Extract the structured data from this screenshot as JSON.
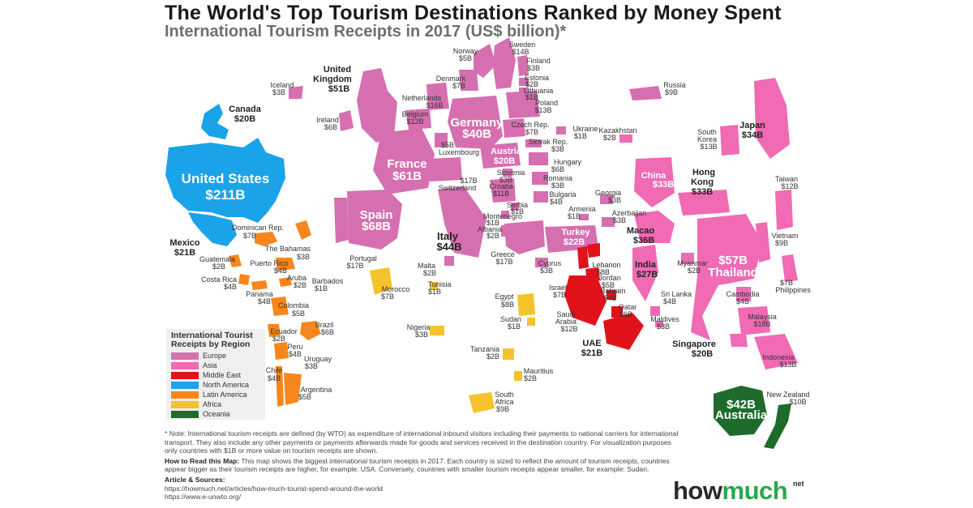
{
  "header": {
    "title": "The World's Top Tourism Destinations Ranked by Money Spent",
    "subtitle": "International Tourism Receipts in 2017 (US$ billion)*"
  },
  "colors": {
    "europe": "#d66fb0",
    "asia": "#f06ab4",
    "middle_east": "#e2121b",
    "north_america": "#1aa3e8",
    "latin_america": "#f7871c",
    "africa": "#f4c22b",
    "oceania": "#1e6b2c"
  },
  "legend": {
    "title": "International Tourist Receipts by Region",
    "items": [
      {
        "label": "Europe",
        "color": "#d66fb0"
      },
      {
        "label": "Asia",
        "color": "#f06ab4"
      },
      {
        "label": "Middle East",
        "color": "#e2121b"
      },
      {
        "label": "North America",
        "color": "#1aa3e8"
      },
      {
        "label": "Latin America",
        "color": "#f7871c"
      },
      {
        "label": "Africa",
        "color": "#f4c22b"
      },
      {
        "label": "Oceania",
        "color": "#1e6b2c"
      }
    ]
  },
  "countries": [
    {
      "name": "United States",
      "value": "$211B",
      "region": "north_america"
    },
    {
      "name": "Canada",
      "value": "$20B",
      "region": "north_america"
    },
    {
      "name": "Mexico",
      "value": "$21B",
      "region": "north_america"
    },
    {
      "name": "Spain",
      "value": "$68B",
      "region": "europe"
    },
    {
      "name": "France",
      "value": "$61B",
      "region": "europe"
    },
    {
      "name": "United Kingdom",
      "value": "$51B",
      "region": "europe"
    },
    {
      "name": "Italy",
      "value": "$44B",
      "region": "europe"
    },
    {
      "name": "Germany",
      "value": "$40B",
      "region": "europe"
    },
    {
      "name": "Turkey",
      "value": "$22B",
      "region": "europe"
    },
    {
      "name": "Austria",
      "value": "$20B",
      "region": "europe"
    },
    {
      "name": "Switzerland",
      "value": "$17B",
      "region": "europe"
    },
    {
      "name": "Portugal",
      "value": "$17B",
      "region": "europe"
    },
    {
      "name": "Greece",
      "value": "$17B",
      "region": "europe"
    },
    {
      "name": "Netherlands",
      "value": "$16B",
      "region": "europe"
    },
    {
      "name": "Sweden",
      "value": "$14B",
      "region": "europe"
    },
    {
      "name": "Poland",
      "value": "$13B",
      "region": "europe"
    },
    {
      "name": "Belgium",
      "value": "$12B",
      "region": "europe"
    },
    {
      "name": "Croatia",
      "value": "$11B",
      "region": "europe"
    },
    {
      "name": "Denmark",
      "value": "$7B",
      "region": "europe"
    },
    {
      "name": "Czech Rep.",
      "value": "$7B",
      "region": "europe"
    },
    {
      "name": "Ireland",
      "value": "$6B",
      "region": "europe"
    },
    {
      "name": "Hungary",
      "value": "$6B",
      "region": "europe"
    },
    {
      "name": "Norway",
      "value": "$5B",
      "region": "europe"
    },
    {
      "name": "Luxembourg",
      "value": "$5B",
      "region": "europe"
    },
    {
      "name": "Bulgaria",
      "value": "$4B",
      "region": "europe"
    },
    {
      "name": "Finland",
      "value": "$3B",
      "region": "europe"
    },
    {
      "name": "Iceland",
      "value": "$3B",
      "region": "europe"
    },
    {
      "name": "Slovak Rep.",
      "value": "$3B",
      "region": "europe"
    },
    {
      "name": "Slovenia",
      "value": "$3B",
      "region": "europe"
    },
    {
      "name": "Romania",
      "value": "$3B",
      "region": "europe"
    },
    {
      "name": "Cyprus",
      "value": "$3B",
      "region": "europe"
    },
    {
      "name": "Georgia",
      "value": "$3B",
      "region": "europe"
    },
    {
      "name": "Azerbaijan",
      "value": "$3B",
      "region": "europe"
    },
    {
      "name": "Estonia",
      "value": "$2B",
      "region": "europe"
    },
    {
      "name": "Malta",
      "value": "$2B",
      "region": "europe"
    },
    {
      "name": "Albania",
      "value": "$2B",
      "region": "europe"
    },
    {
      "name": "Lithuania",
      "value": "$1B",
      "region": "europe"
    },
    {
      "name": "Ukraine",
      "value": "$1B",
      "region": "europe"
    },
    {
      "name": "Serbia",
      "value": "$1B",
      "region": "europe"
    },
    {
      "name": "Montenegro",
      "value": "$1B",
      "region": "europe"
    },
    {
      "name": "Armenia",
      "value": "$1B",
      "region": "europe"
    },
    {
      "name": "Russia",
      "value": "$9B",
      "region": "europe"
    },
    {
      "name": "Thailand",
      "value": "$57B",
      "region": "asia"
    },
    {
      "name": "Macao",
      "value": "$36B",
      "region": "asia"
    },
    {
      "name": "Japan",
      "value": "$34B",
      "region": "asia"
    },
    {
      "name": "China",
      "value": "$33B",
      "region": "asia"
    },
    {
      "name": "Hong Kong",
      "value": "$33B",
      "region": "asia"
    },
    {
      "name": "India",
      "value": "$27B",
      "region": "asia"
    },
    {
      "name": "Singapore",
      "value": "$20B",
      "region": "asia"
    },
    {
      "name": "Malaysia",
      "value": "$18B",
      "region": "asia"
    },
    {
      "name": "South Korea",
      "value": "$13B",
      "region": "asia"
    },
    {
      "name": "Indonesia",
      "value": "$13B",
      "region": "asia"
    },
    {
      "name": "Taiwan",
      "value": "$12B",
      "region": "asia"
    },
    {
      "name": "Vietnam",
      "value": "$9B",
      "region": "asia"
    },
    {
      "name": "Philippines",
      "value": "$7B",
      "region": "asia"
    },
    {
      "name": "Cambodia",
      "value": "$4B",
      "region": "asia"
    },
    {
      "name": "Sri Lanka",
      "value": "$4B",
      "region": "asia"
    },
    {
      "name": "Maldives",
      "value": "$3B",
      "region": "asia"
    },
    {
      "name": "Kazakhstan",
      "value": "$2B",
      "region": "asia"
    },
    {
      "name": "Myanmar",
      "value": "$2B",
      "region": "asia"
    },
    {
      "name": "UAE",
      "value": "$21B",
      "region": "middle_east"
    },
    {
      "name": "Saudi Arabia",
      "value": "$12B",
      "region": "middle_east"
    },
    {
      "name": "Lebanon",
      "value": "$8B",
      "region": "middle_east"
    },
    {
      "name": "Israel",
      "value": "$7B",
      "region": "middle_east"
    },
    {
      "name": "Qatar",
      "value": "$6B",
      "region": "middle_east"
    },
    {
      "name": "Jordan",
      "value": "$5B",
      "region": "middle_east"
    },
    {
      "name": "Bahrain",
      "value": "$4B",
      "region": "middle_east"
    },
    {
      "name": "Egypt",
      "value": "$8B",
      "region": "africa"
    },
    {
      "name": "Morocco",
      "value": "$7B",
      "region": "africa"
    },
    {
      "name": "South Africa",
      "value": "$9B",
      "region": "africa"
    },
    {
      "name": "Nigeria",
      "value": "$3B",
      "region": "africa"
    },
    {
      "name": "Tanzania",
      "value": "$2B",
      "region": "africa"
    },
    {
      "name": "Mauritius",
      "value": "$2B",
      "region": "africa"
    },
    {
      "name": "Tunisia",
      "value": "$1B",
      "region": "africa"
    },
    {
      "name": "Sudan",
      "value": "$1B",
      "region": "africa"
    },
    {
      "name": "Australia",
      "value": "$42B",
      "region": "oceania"
    },
    {
      "name": "New Zealand",
      "value": "$10B",
      "region": "oceania"
    },
    {
      "name": "Brazil",
      "value": "$6B",
      "region": "latin_america"
    },
    {
      "name": "Dominican Rep.",
      "value": "$7B",
      "region": "latin_america"
    },
    {
      "name": "Colombia",
      "value": "$5B",
      "region": "latin_america"
    },
    {
      "name": "Argentina",
      "value": "$5B",
      "region": "latin_america"
    },
    {
      "name": "Puerto Rico",
      "value": "$4B",
      "region": "latin_america"
    },
    {
      "name": "Costa Rica",
      "value": "$4B",
      "region": "latin_america"
    },
    {
      "name": "Panama",
      "value": "$4B",
      "region": "latin_america"
    },
    {
      "name": "Peru",
      "value": "$4B",
      "region": "latin_america"
    },
    {
      "name": "Chile",
      "value": "$4B",
      "region": "latin_america"
    },
    {
      "name": "The Bahamas",
      "value": "$3B",
      "region": "latin_america"
    },
    {
      "name": "Uruguay",
      "value": "$3B",
      "region": "latin_america"
    },
    {
      "name": "Guatemala",
      "value": "$2B",
      "region": "latin_america"
    },
    {
      "name": "Aruba",
      "value": "$2B",
      "region": "latin_america"
    },
    {
      "name": "Ecuador",
      "value": "$2B",
      "region": "latin_america"
    },
    {
      "name": "Barbados",
      "value": "$1B",
      "region": "latin_america"
    }
  ],
  "notes": {
    "note": "* Note: International tourism receipts are defined (by WTO) as expenditure of international inbound visitors including their payments to national carriers for international transport. They also include any other payments or payments afterwards made for goods and services received in the destination country.  For visualization purposes only countries with $1B or more value on tourism receipts are shown.",
    "how_to_read_label": "How to Read this Map:",
    "how_to_read": " This map shows the biggest international tourism receipts in 2017. Each country is sized to reflect the amount of tourism receipts, countries appear bigger as their tourism receipts are higher, for example: USA. Conversely, countries with smaller tourism receipts appear smaller, for example: Sudan.",
    "sources_label": "Article & Sources:",
    "source_1": "https://howmuch.net/articles/how-much-tourist-spend-around-the-world",
    "source_2": "https://www.e-unwto.org/"
  },
  "logo": {
    "left": "how",
    "middle": "much",
    "suffix": "net"
  }
}
